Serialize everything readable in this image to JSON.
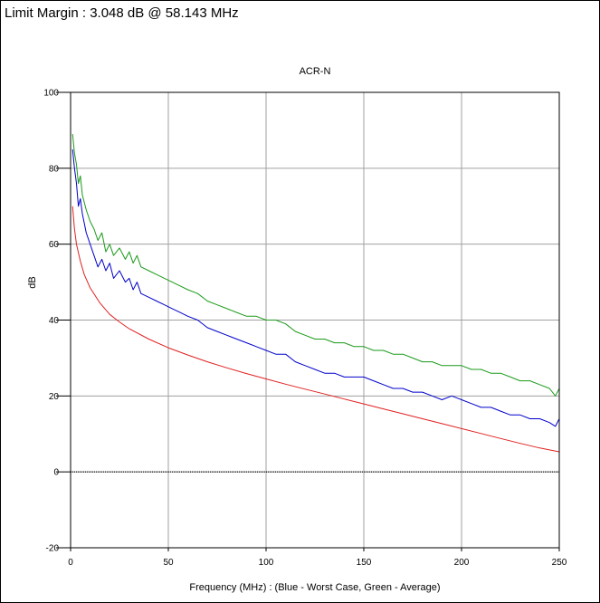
{
  "header": {
    "limit_margin": "Limit Margin : 3.048 dB @ 58.143 MHz"
  },
  "colors": {
    "worst_case": "#0000cc",
    "average": "#1a9a1a",
    "limit": "#e02020",
    "grid": "#a0a0a0",
    "axis": "#000000"
  },
  "chart_data": {
    "type": "line",
    "title": "ACR-N",
    "xlabel": "Frequency (MHz) : (Blue - Worst Case, Green - Average)",
    "ylabel": "dB",
    "xlim": [
      0,
      250
    ],
    "ylim": [
      -20,
      100
    ],
    "xticks": [
      "0",
      "50",
      "100",
      "150",
      "200",
      "250"
    ],
    "yticks": [
      "-20",
      "0",
      "20",
      "40",
      "60",
      "80",
      "100"
    ],
    "grid": true,
    "legend": "none",
    "series": [
      {
        "color": "#1a9a1a",
        "x": [
          1,
          2,
          3,
          4,
          5,
          6,
          8,
          10,
          12,
          14,
          16,
          18,
          20,
          22,
          25,
          28,
          30,
          32,
          34,
          36,
          40,
          44,
          48,
          52,
          56,
          60,
          65,
          70,
          75,
          80,
          85,
          90,
          95,
          100,
          105,
          110,
          115,
          120,
          125,
          130,
          135,
          140,
          145,
          150,
          155,
          160,
          165,
          170,
          175,
          180,
          185,
          190,
          195,
          200,
          205,
          210,
          215,
          220,
          225,
          230,
          235,
          240,
          245,
          248,
          250
        ],
        "y": [
          89,
          84,
          81,
          76,
          78,
          73,
          69,
          66,
          64,
          61,
          63,
          58,
          60,
          57,
          59,
          56,
          58,
          55,
          57,
          54,
          53,
          52,
          51,
          50,
          49,
          48,
          47,
          45,
          44,
          43,
          42,
          41,
          41,
          40,
          40,
          39,
          37,
          36,
          35,
          35,
          34,
          34,
          33,
          33,
          32,
          32,
          31,
          31,
          30,
          29,
          29,
          28,
          28,
          28,
          27,
          27,
          26,
          26,
          25,
          24,
          24,
          23,
          22,
          20,
          22
        ]
      },
      {
        "color": "#0000cc",
        "x": [
          1,
          2,
          3,
          4,
          5,
          6,
          8,
          10,
          12,
          14,
          16,
          18,
          20,
          22,
          25,
          28,
          30,
          32,
          34,
          36,
          40,
          44,
          48,
          52,
          56,
          60,
          65,
          70,
          75,
          80,
          85,
          90,
          95,
          100,
          105,
          110,
          115,
          120,
          125,
          130,
          135,
          140,
          145,
          150,
          155,
          160,
          165,
          170,
          175,
          180,
          185,
          190,
          195,
          200,
          205,
          210,
          215,
          220,
          225,
          230,
          235,
          240,
          245,
          248,
          250
        ],
        "y": [
          85,
          80,
          76,
          70,
          72,
          68,
          63,
          60,
          57,
          54,
          56,
          53,
          55,
          51,
          53,
          50,
          51,
          48,
          50,
          47,
          46,
          45,
          44,
          43,
          42,
          41,
          40,
          38,
          37,
          36,
          35,
          34,
          33,
          32,
          31,
          31,
          29,
          28,
          27,
          26,
          26,
          25,
          25,
          25,
          24,
          23,
          22,
          22,
          21,
          21,
          20,
          19,
          20,
          19,
          18,
          17,
          17,
          16,
          15,
          15,
          14,
          14,
          13,
          12,
          14
        ]
      },
      {
        "color": "#e02020",
        "x": [
          1,
          2,
          3,
          5,
          7,
          10,
          15,
          20,
          25,
          30,
          40,
          50,
          60,
          70,
          80,
          90,
          100,
          110,
          120,
          130,
          140,
          150,
          160,
          170,
          180,
          190,
          200,
          210,
          220,
          230,
          240,
          250
        ],
        "y": [
          70,
          64,
          60,
          55.5,
          52,
          48.5,
          44.5,
          41.5,
          39.5,
          37.7,
          35,
          32.7,
          30.8,
          29,
          27.4,
          25.9,
          24.5,
          23.1,
          21.8,
          20.5,
          19.2,
          17.9,
          16.6,
          15.3,
          14,
          12.7,
          11.4,
          10.1,
          8.8,
          7.5,
          6.3,
          5.3
        ]
      }
    ]
  }
}
